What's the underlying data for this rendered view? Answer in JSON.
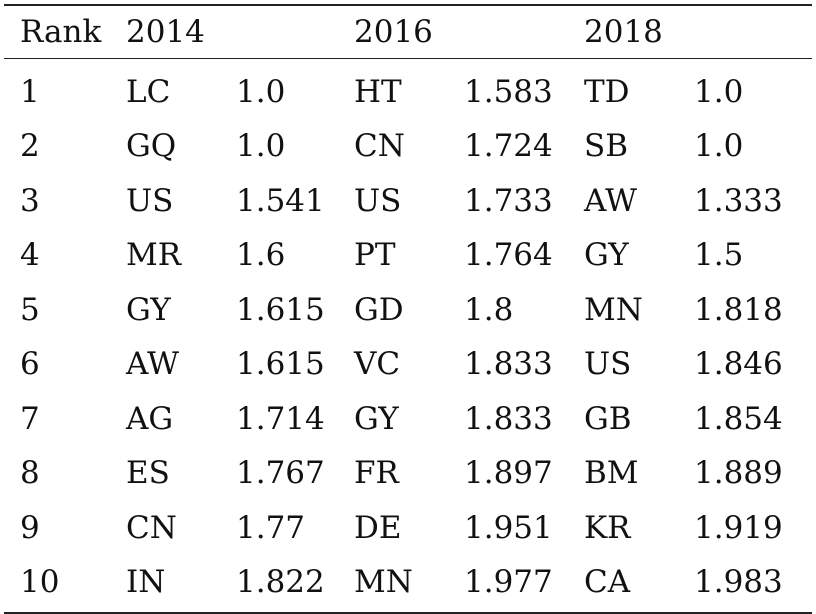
{
  "table": {
    "headers": [
      "Rank",
      "2014",
      "",
      "2016",
      "",
      "2018",
      ""
    ],
    "rows": [
      [
        "1",
        "LC",
        "1.0",
        "HT",
        "1.583",
        "TD",
        "1.0"
      ],
      [
        "2",
        "GQ",
        "1.0",
        "CN",
        "1.724",
        "SB",
        "1.0"
      ],
      [
        "3",
        "US",
        "1.541",
        "US",
        "1.733",
        "AW",
        "1.333"
      ],
      [
        "4",
        "MR",
        "1.6",
        "PT",
        "1.764",
        "GY",
        "1.5"
      ],
      [
        "5",
        "GY",
        "1.615",
        "GD",
        "1.8",
        "MN",
        "1.818"
      ],
      [
        "6",
        "AW",
        "1.615",
        "VC",
        "1.833",
        "US",
        "1.846"
      ],
      [
        "7",
        "AG",
        "1.714",
        "GY",
        "1.833",
        "GB",
        "1.854"
      ],
      [
        "8",
        "ES",
        "1.767",
        "FR",
        "1.897",
        "BM",
        "1.889"
      ],
      [
        "9",
        "CN",
        "1.77",
        "DE",
        "1.951",
        "KR",
        "1.919"
      ],
      [
        "10",
        "IN",
        "1.822",
        "MN",
        "1.977",
        "CA",
        "1.983"
      ]
    ]
  }
}
